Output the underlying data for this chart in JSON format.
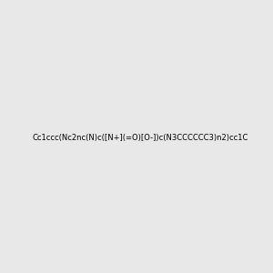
{
  "smiles": "Cc1ccc(Nc2nc(N)c([N+](=O)[O-])c(N3CCCCCC3)n2)cc1C",
  "image_size": 300,
  "background_color": "#e8e8e8",
  "title": ""
}
